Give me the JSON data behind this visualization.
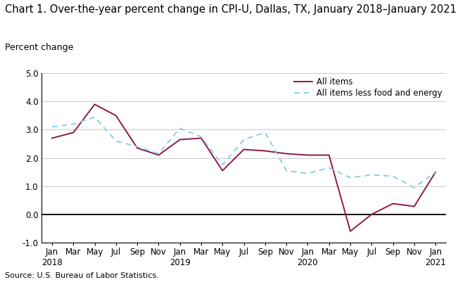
{
  "title": "Chart 1. Over-the-year percent change in CPI-U, Dallas, TX, January 2018–January 2021",
  "ylabel": "Percent change",
  "source": "Source: U.S. Bureau of Labor Statistics.",
  "ylim": [
    -1.0,
    5.0
  ],
  "yticks": [
    -1.0,
    0.0,
    1.0,
    2.0,
    3.0,
    4.0,
    5.0
  ],
  "x_labels": [
    "Jan\n2018",
    "Mar",
    "May",
    "Jul",
    "Sep",
    "Nov",
    "Jan\n2019",
    "Mar",
    "May",
    "Jul",
    "Sep",
    "Nov",
    "Jan\n2020",
    "Mar",
    "May",
    "Jul",
    "Sep",
    "Nov",
    "Jan\n2021"
  ],
  "all_items": [
    2.7,
    2.9,
    3.9,
    3.5,
    2.35,
    2.1,
    2.65,
    2.7,
    1.55,
    2.3,
    2.25,
    2.15,
    2.1,
    2.1,
    -0.6,
    0.0,
    0.38,
    0.28,
    1.5
  ],
  "core": [
    3.1,
    3.2,
    3.45,
    2.6,
    2.4,
    2.15,
    3.05,
    2.75,
    1.75,
    2.65,
    2.9,
    1.55,
    1.45,
    1.65,
    1.3,
    1.4,
    1.35,
    0.95,
    1.5
  ],
  "all_items_color": "#8B1A4A",
  "core_color": "#87CEEB",
  "background_color": "#ffffff",
  "legend_all_items": "All items",
  "legend_core": "All items less food and energy",
  "title_fontsize": 10.5,
  "axis_label_fontsize": 9,
  "tick_fontsize": 8.5,
  "legend_fontsize": 8.5
}
